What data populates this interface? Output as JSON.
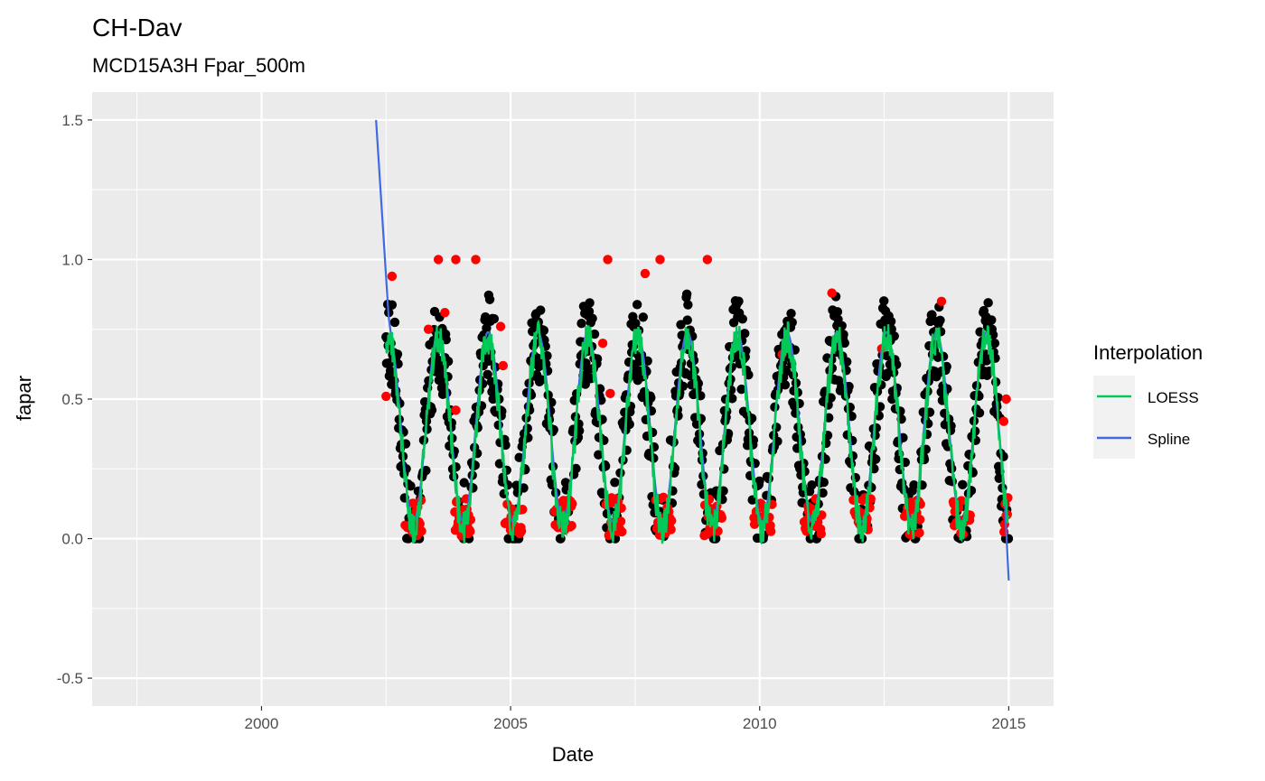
{
  "chart_data": {
    "type": "scatter",
    "title": "CH-Dav",
    "subtitle": "MCD15A3H Fpar_500m",
    "xlabel": "Date",
    "ylabel": "fapar",
    "x_is_date_years": true,
    "xlim": [
      1996.6,
      2015.9
    ],
    "ylim": [
      -0.6,
      1.6
    ],
    "x_ticks": [
      2000,
      2005,
      2010,
      2015
    ],
    "x_tick_labels": [
      "2000",
      "2005",
      "2010",
      "2015"
    ],
    "y_ticks": [
      -0.5,
      0.0,
      0.5,
      1.0,
      1.5
    ],
    "y_tick_labels": [
      "-0.5",
      "0.0",
      "0.5",
      "1.0",
      "1.5"
    ],
    "grid": true,
    "legend": {
      "title": "Interpolation",
      "position": "right",
      "entries": [
        {
          "label": "LOESS",
          "color": "#00C957"
        },
        {
          "label": "Spline",
          "color": "#4169E1"
        }
      ]
    },
    "colors": {
      "good_points": "#000000",
      "flagged_points": "#FF0000",
      "loess": "#00C957",
      "spline": "#4169E1",
      "panel_bg": "#EBEBEB"
    },
    "series_points": {
      "flagged_high": [
        [
          2002.62,
          0.94
        ],
        [
          2003.55,
          1.0
        ],
        [
          2003.9,
          1.0
        ],
        [
          2004.3,
          1.0
        ],
        [
          2006.95,
          1.0
        ],
        [
          2007.7,
          0.95
        ],
        [
          2008.0,
          1.0
        ],
        [
          2008.95,
          1.0
        ],
        [
          2011.45,
          0.88
        ],
        [
          2013.65,
          0.85
        ],
        [
          2003.68,
          0.81
        ],
        [
          2003.35,
          0.75
        ],
        [
          2002.5,
          0.51
        ],
        [
          2004.8,
          0.76
        ],
        [
          2004.85,
          0.62
        ],
        [
          2006.85,
          0.7
        ],
        [
          2007.0,
          0.52
        ],
        [
          2010.45,
          0.66
        ],
        [
          2012.45,
          0.68
        ],
        [
          2014.95,
          0.5
        ],
        [
          2014.9,
          0.42
        ],
        [
          2003.9,
          0.46
        ]
      ],
      "spline_start": [
        [
          2002.3,
          1.5
        ],
        [
          2002.55,
          0.8
        ]
      ],
      "spline_end": [
        [
          2014.9,
          0.2
        ],
        [
          2015.0,
          -0.15
        ]
      ]
    }
  }
}
